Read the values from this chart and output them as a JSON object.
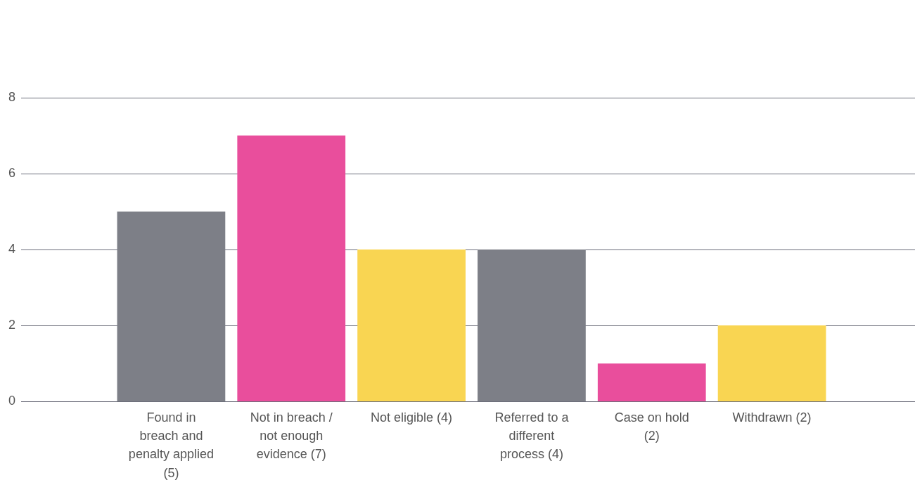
{
  "chart_data": {
    "type": "bar",
    "categories": [
      "Found in breach and penalty applied (5)",
      "Not in breach / not enough evidence (7)",
      "Not eligible (4)",
      "Referred to a different process (4)",
      "Case on hold (2)",
      "Withdrawn (2)"
    ],
    "values": [
      5,
      7,
      4,
      4,
      1,
      2
    ],
    "colors": [
      "#7d7f87",
      "#e94e9c",
      "#f9d552",
      "#7d7f87",
      "#e94e9c",
      "#f9d552"
    ],
    "ylim": [
      0,
      8
    ],
    "yticks": [
      0,
      2,
      4,
      6,
      8
    ],
    "grid": "y",
    "legend": false
  }
}
